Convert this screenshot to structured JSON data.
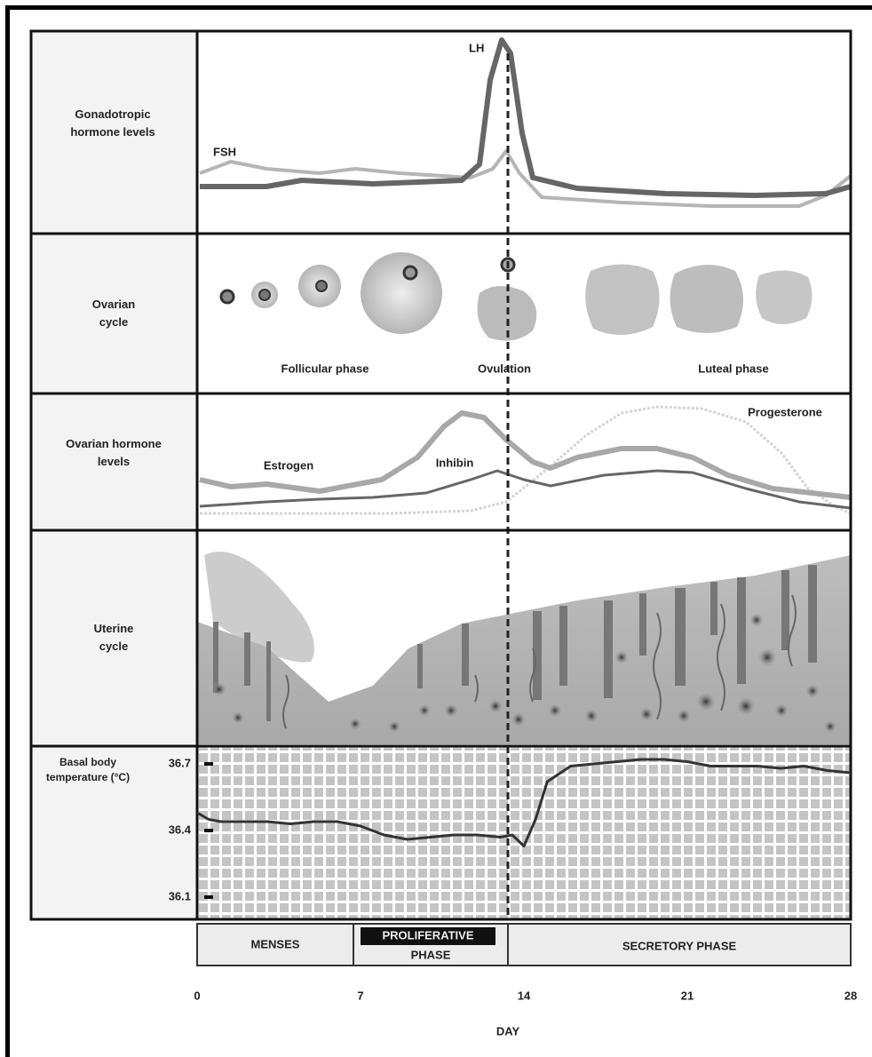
{
  "rows": [
    {
      "label": "Gonadotropic hormone levels"
    },
    {
      "label": "Ovarian cycle"
    },
    {
      "label": "Ovarian hormone levels"
    },
    {
      "label": "Uterine cycle"
    },
    {
      "label": "Basal body temperature (°C)"
    }
  ],
  "curve_labels": {
    "fsh": "FSH",
    "lh": "LH",
    "estrogen": "Estrogen",
    "inhibin": "Inhibin",
    "progesterone": "Progesterone"
  },
  "ovarian_phases": {
    "follicular": "Follicular phase",
    "ovulation": "Ovulation",
    "luteal": "Luteal phase"
  },
  "uterine_phases": {
    "menses": "MENSES",
    "proliferative": "PROLIFERATIVE",
    "proliferative_sub": "PHASE",
    "secretory": "SECRETORY PHASE"
  },
  "temperature": {
    "x": [
      0,
      0.5,
      1,
      2,
      3,
      4,
      5,
      6,
      7,
      8,
      9,
      10,
      11,
      12,
      13,
      13.5,
      14,
      14.5,
      15,
      16,
      17,
      18,
      19,
      20,
      21,
      22,
      23,
      24,
      25,
      26,
      27,
      28
    ],
    "values": [
      36.48,
      36.45,
      36.44,
      36.44,
      36.44,
      36.43,
      36.44,
      36.44,
      36.42,
      36.38,
      36.36,
      36.37,
      36.38,
      36.38,
      36.37,
      36.38,
      36.33,
      36.45,
      36.62,
      36.69,
      36.7,
      36.71,
      36.72,
      36.72,
      36.71,
      36.69,
      36.69,
      36.69,
      36.68,
      36.69,
      36.67,
      36.66
    ],
    "xlim": [
      0,
      28
    ],
    "ylim": [
      36,
      36.78
    ],
    "yticks": [
      36.1,
      36.4,
      36.7
    ]
  },
  "day_axis": {
    "label": "DAY",
    "ticks": [
      0,
      7,
      14,
      21,
      28
    ]
  }
}
